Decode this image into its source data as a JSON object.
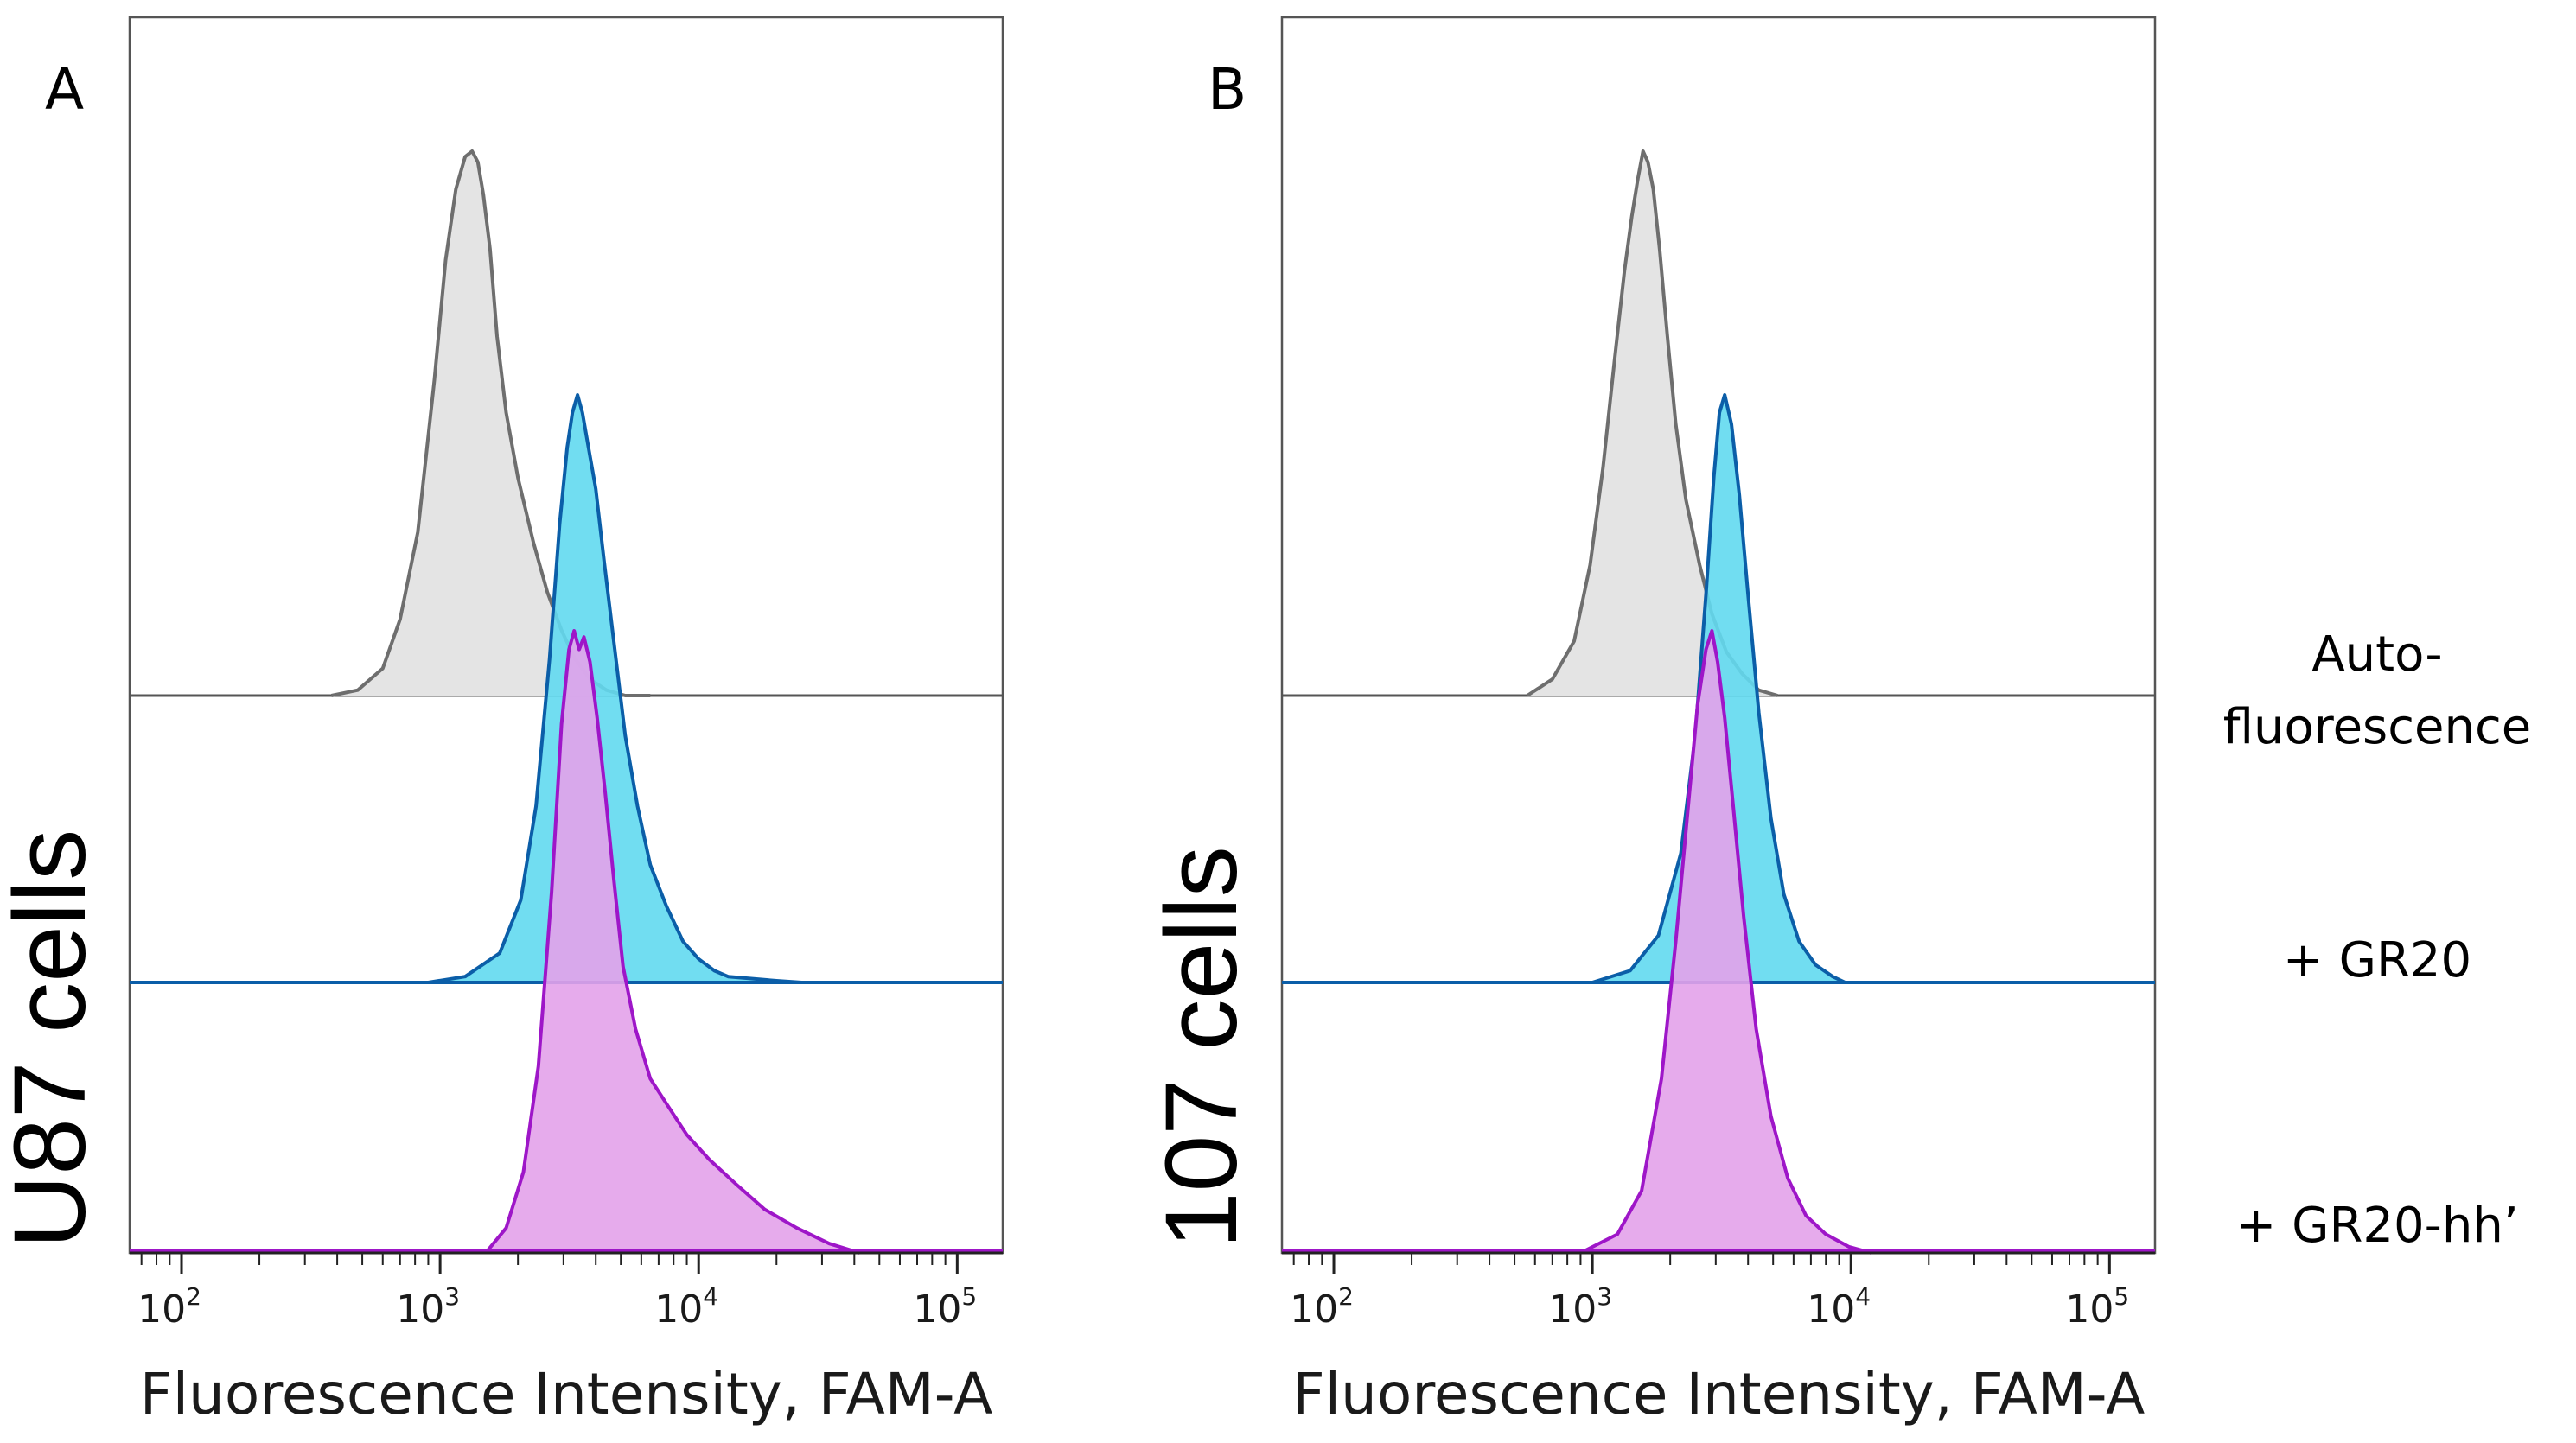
{
  "figure": {
    "legend": [
      {
        "lines": [
          "Auto-",
          "fluorescence"
        ]
      },
      {
        "lines": [
          "+ GR20"
        ]
      },
      {
        "lines": [
          "+ GR20-hh’"
        ]
      }
    ]
  },
  "chart_data": [
    {
      "panel_label": "A",
      "title": "U87 cells",
      "type": "area",
      "xlabel": "Fluorescence Intensity, FAM-A",
      "ylabel": "",
      "x_scale": "log10",
      "xlim": [
        63,
        150000
      ],
      "tick_labels": [
        {
          "base": "10",
          "exp": "2",
          "value": 100
        },
        {
          "base": "10",
          "exp": "3",
          "value": 1000
        },
        {
          "base": "10",
          "exp": "4",
          "value": 10000
        },
        {
          "base": "10",
          "exp": "5",
          "value": 100000
        }
      ],
      "series": [
        {
          "name": "Auto-fluorescence",
          "color": "#6e6e6e",
          "fill": "#e4e4e4",
          "track": 0,
          "x": [
            380,
            480,
            600,
            700,
            820,
            950,
            1050,
            1150,
            1250,
            1330,
            1400,
            1470,
            1560,
            1660,
            1800,
            2000,
            2300,
            2600,
            2950,
            3300,
            3800,
            4400,
            5200,
            6500
          ],
          "y": [
            0,
            0.01,
            0.05,
            0.14,
            0.3,
            0.58,
            0.8,
            0.93,
            0.99,
            1.0,
            0.98,
            0.92,
            0.82,
            0.66,
            0.52,
            0.4,
            0.28,
            0.19,
            0.12,
            0.07,
            0.03,
            0.01,
            0.0,
            0
          ]
        },
        {
          "name": "+ GR20",
          "color": "#0b5ea8",
          "fill": "#62d9ef",
          "track": 1,
          "x": [
            900,
            1250,
            1700,
            2050,
            2350,
            2650,
            2900,
            3100,
            3250,
            3400,
            3550,
            3750,
            4000,
            4300,
            4700,
            5200,
            5800,
            6500,
            7500,
            8700,
            10000,
            11500,
            13000,
            20000,
            25000
          ],
          "y": [
            0,
            0.01,
            0.05,
            0.14,
            0.3,
            0.55,
            0.78,
            0.91,
            0.97,
            1.0,
            0.97,
            0.91,
            0.84,
            0.72,
            0.58,
            0.42,
            0.3,
            0.2,
            0.13,
            0.07,
            0.04,
            0.02,
            0.01,
            0.003,
            0
          ]
        },
        {
          "name": "+ GR20-hh’",
          "color": "#9e16c8",
          "fill": "#e3a2ea",
          "track": 2,
          "x": [
            1500,
            1800,
            2100,
            2400,
            2700,
            2950,
            3150,
            3300,
            3450,
            3600,
            3800,
            4050,
            4350,
            4700,
            5100,
            5700,
            6500,
            7500,
            9000,
            11000,
            14000,
            18000,
            24000,
            32000,
            42000
          ],
          "y": [
            0,
            0.04,
            0.13,
            0.3,
            0.58,
            0.85,
            0.97,
            1.0,
            0.97,
            0.99,
            0.95,
            0.86,
            0.74,
            0.6,
            0.46,
            0.36,
            0.28,
            0.24,
            0.19,
            0.15,
            0.11,
            0.07,
            0.04,
            0.015,
            0
          ]
        }
      ]
    },
    {
      "panel_label": "B",
      "title": "107 cells",
      "type": "area",
      "xlabel": "Fluorescence Intensity, FAM-A",
      "ylabel": "",
      "x_scale": "log10",
      "xlim": [
        63,
        150000
      ],
      "tick_labels": [
        {
          "base": "10",
          "exp": "2",
          "value": 100
        },
        {
          "base": "10",
          "exp": "3",
          "value": 1000
        },
        {
          "base": "10",
          "exp": "4",
          "value": 10000
        },
        {
          "base": "10",
          "exp": "5",
          "value": 100000
        }
      ],
      "series": [
        {
          "name": "Auto-fluorescence",
          "color": "#6e6e6e",
          "fill": "#e4e4e4",
          "track": 0,
          "x": [
            560,
            700,
            850,
            980,
            1100,
            1220,
            1330,
            1420,
            1500,
            1570,
            1640,
            1720,
            1820,
            1950,
            2100,
            2300,
            2600,
            2900,
            3300,
            3800,
            4400,
            5200
          ],
          "y": [
            0,
            0.03,
            0.1,
            0.24,
            0.42,
            0.62,
            0.78,
            0.88,
            0.95,
            1.0,
            0.98,
            0.93,
            0.82,
            0.66,
            0.5,
            0.36,
            0.24,
            0.15,
            0.08,
            0.04,
            0.01,
            0
          ]
        },
        {
          "name": "+ GR20",
          "color": "#0b5ea8",
          "fill": "#62d9ef",
          "track": 1,
          "x": [
            1000,
            1400,
            1800,
            2200,
            2500,
            2750,
            2950,
            3100,
            3250,
            3450,
            3700,
            4000,
            4400,
            4900,
            5500,
            6300,
            7300,
            8500,
            9500
          ],
          "y": [
            0,
            0.02,
            0.08,
            0.22,
            0.42,
            0.66,
            0.86,
            0.97,
            1.0,
            0.95,
            0.83,
            0.66,
            0.46,
            0.28,
            0.15,
            0.07,
            0.03,
            0.01,
            0
          ]
        },
        {
          "name": "+ GR20-hh’",
          "color": "#9e16c8",
          "fill": "#e3a2ea",
          "track": 2,
          "x": [
            900,
            1250,
            1550,
            1850,
            2100,
            2350,
            2550,
            2750,
            2900,
            3050,
            3250,
            3500,
            3850,
            4300,
            4900,
            5700,
            6700,
            8000,
            9800,
            12000
          ],
          "y": [
            0,
            0.03,
            0.1,
            0.28,
            0.5,
            0.72,
            0.88,
            0.97,
            1.0,
            0.95,
            0.86,
            0.72,
            0.54,
            0.36,
            0.22,
            0.12,
            0.06,
            0.03,
            0.01,
            0
          ]
        }
      ]
    }
  ]
}
